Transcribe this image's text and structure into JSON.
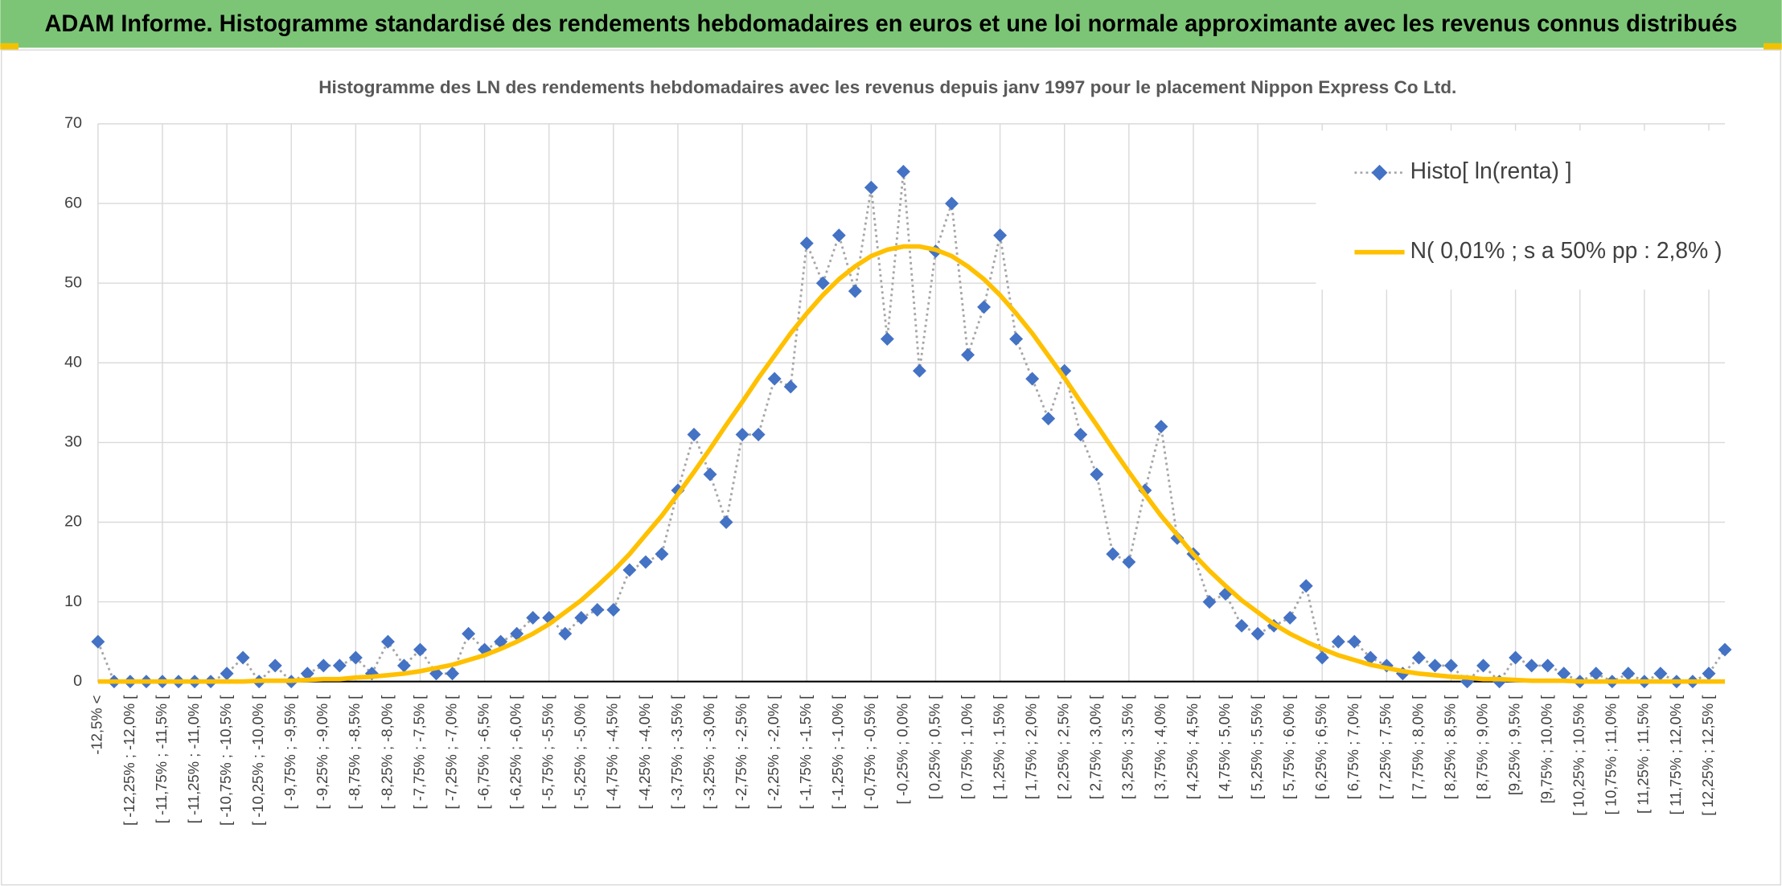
{
  "chart_data": {
    "type": "line",
    "title": "ADAM Informe. Histogramme standardisé des rendements hebdomadaires en euros et une loi normale approximante avec les revenus connus distribués",
    "subtitle": "Histogramme des LN des rendements hebdomadaires avec les revenus depuis janv 1997 pour le placement Nippon Express Co Ltd.",
    "categories": [
      "-12,5% <",
      null,
      "[ -12,25% ; -12,0% [",
      null,
      "[ -11,75% ; -11,5% [",
      null,
      "[ -11,25% ; -11,0% [",
      null,
      "[ -10,75% ; -10,5% [",
      null,
      "[ -10,25% ; -10,0% [",
      null,
      "[ -9,75% ; -9,5% [",
      null,
      "[ -9,25% ; -9,0% [",
      null,
      "[ -8,75% ; -8,5% [",
      null,
      "[ -8,25% ; -8,0% [",
      null,
      "[ -7,75% ; -7,5% [",
      null,
      "[ -7,25% ; -7,0% [",
      null,
      "[ -6,75% ; -6,5% [",
      null,
      "[ -6,25% ; -6,0% [",
      null,
      "[ -5,75% ; -5,5% [",
      null,
      "[ -5,25% ; -5,0% [",
      null,
      "[ -4,75% ; -4,5% [",
      null,
      "[ -4,25% ; -4,0% [",
      null,
      "[ -3,75% ; -3,5% [",
      null,
      "[ -3,25% ; -3,0% [",
      null,
      "[ -2,75% ; -2,5% [",
      null,
      "[ -2,25% ; -2,0% [",
      null,
      "[ -1,75% ; -1,5% [",
      null,
      "[ -1,25% ; -1,0% [",
      null,
      "[ -0,75% ; -0,5% [",
      null,
      "[ -0,25% ; 0,0% [",
      null,
      "[ 0,25% ; 0,5% [",
      null,
      "[ 0,75% ; 1,0% [",
      null,
      "[ 1,25% ; 1,5% [",
      null,
      "[ 1,75% ; 2,0% [",
      null,
      "[ 2,25% ; 2,5% [",
      null,
      "[ 2,75% ; 3,0% [",
      null,
      "[ 3,25% ; 3,5% [",
      null,
      "[ 3,75% ; 4,0% [",
      null,
      "[ 4,25% ; 4,5% [",
      null,
      "[ 4,75% ; 5,0% [",
      null,
      "[ 5,25% ; 5,5% [",
      null,
      "[ 5,75% ; 6,0% [",
      null,
      "[ 6,25% ; 6,5% [",
      null,
      "[ 6,75% ; 7,0% [",
      null,
      "[ 7,25% ; 7,5% [",
      null,
      "[ 7,75% ; 8,0% [",
      null,
      "[ 8,25% ; 8,5% [",
      null,
      "[ 8,75% ; 9,0% [",
      null,
      "[9,25% ; 9,5% [",
      null,
      "[9,75% ; 10,0% [",
      null,
      "[ 10,25% ; 10,5% [",
      null,
      "[ 10,75% ; 11,0% [",
      null,
      "[ 11,25% ; 11,5% [",
      null,
      "[ 11,75% ; 12,0% [",
      null,
      "[ 12,25% ; 12,5% [",
      null
    ],
    "series": [
      {
        "name": "Histo[ ln(renta) ]",
        "color": "#4472c4",
        "line_color": "#a6a6a6",
        "marker": "diamond",
        "values": [
          5,
          0,
          0,
          0,
          0,
          0,
          0,
          0,
          1,
          3,
          0,
          2,
          0,
          1,
          2,
          2,
          3,
          1,
          5,
          2,
          4,
          1,
          1,
          6,
          4,
          5,
          6,
          8,
          8,
          6,
          8,
          9,
          9,
          14,
          15,
          16,
          24,
          31,
          26,
          20,
          31,
          31,
          38,
          37,
          55,
          50,
          56,
          49,
          62,
          43,
          64,
          39,
          54,
          60,
          41,
          47,
          56,
          43,
          38,
          33,
          39,
          31,
          26,
          16,
          15,
          24,
          32,
          18,
          16,
          10,
          11,
          7,
          6,
          7,
          8,
          12,
          3,
          5,
          5,
          3,
          2,
          1,
          3,
          2,
          2,
          0,
          2,
          0,
          3,
          2,
          2,
          1,
          0,
          1,
          0,
          1,
          0,
          1,
          0,
          0,
          1,
          4
        ]
      },
      {
        "name": "N( 0,01% ; s a 50% pp : 2,8% )",
        "color": "#ffc000",
        "marker": "none",
        "values": [
          0,
          0,
          0,
          0,
          0,
          0,
          0,
          0,
          0,
          0,
          0.1,
          0.1,
          0.1,
          0.2,
          0.3,
          0.3,
          0.5,
          0.6,
          0.8,
          1.0,
          1.3,
          1.7,
          2.1,
          2.7,
          3.3,
          4.1,
          5.0,
          6.0,
          7.2,
          8.7,
          10.2,
          12.0,
          13.9,
          16.0,
          18.4,
          20.8,
          23.5,
          26.3,
          29.2,
          32.2,
          35.1,
          38.1,
          40.9,
          43.7,
          46.2,
          48.5,
          50.5,
          52.1,
          53.4,
          54.2,
          54.6,
          54.6,
          54.2,
          53.4,
          52.1,
          50.5,
          48.5,
          46.2,
          43.7,
          40.9,
          38.1,
          35.1,
          32.2,
          29.2,
          26.3,
          23.5,
          20.8,
          18.4,
          16.0,
          13.9,
          12.0,
          10.2,
          8.7,
          7.2,
          6.0,
          5.0,
          4.1,
          3.3,
          2.7,
          2.1,
          1.7,
          1.3,
          1.0,
          0.8,
          0.6,
          0.5,
          0.3,
          0.3,
          0.2,
          0.1,
          0.1,
          0.1,
          0,
          0,
          0,
          0,
          0,
          0,
          0,
          0,
          0,
          0
        ]
      }
    ],
    "ylim": [
      0,
      70
    ],
    "yticks": [
      0,
      10,
      20,
      30,
      40,
      50,
      60,
      70
    ],
    "grid": true,
    "legend": "top-right"
  }
}
